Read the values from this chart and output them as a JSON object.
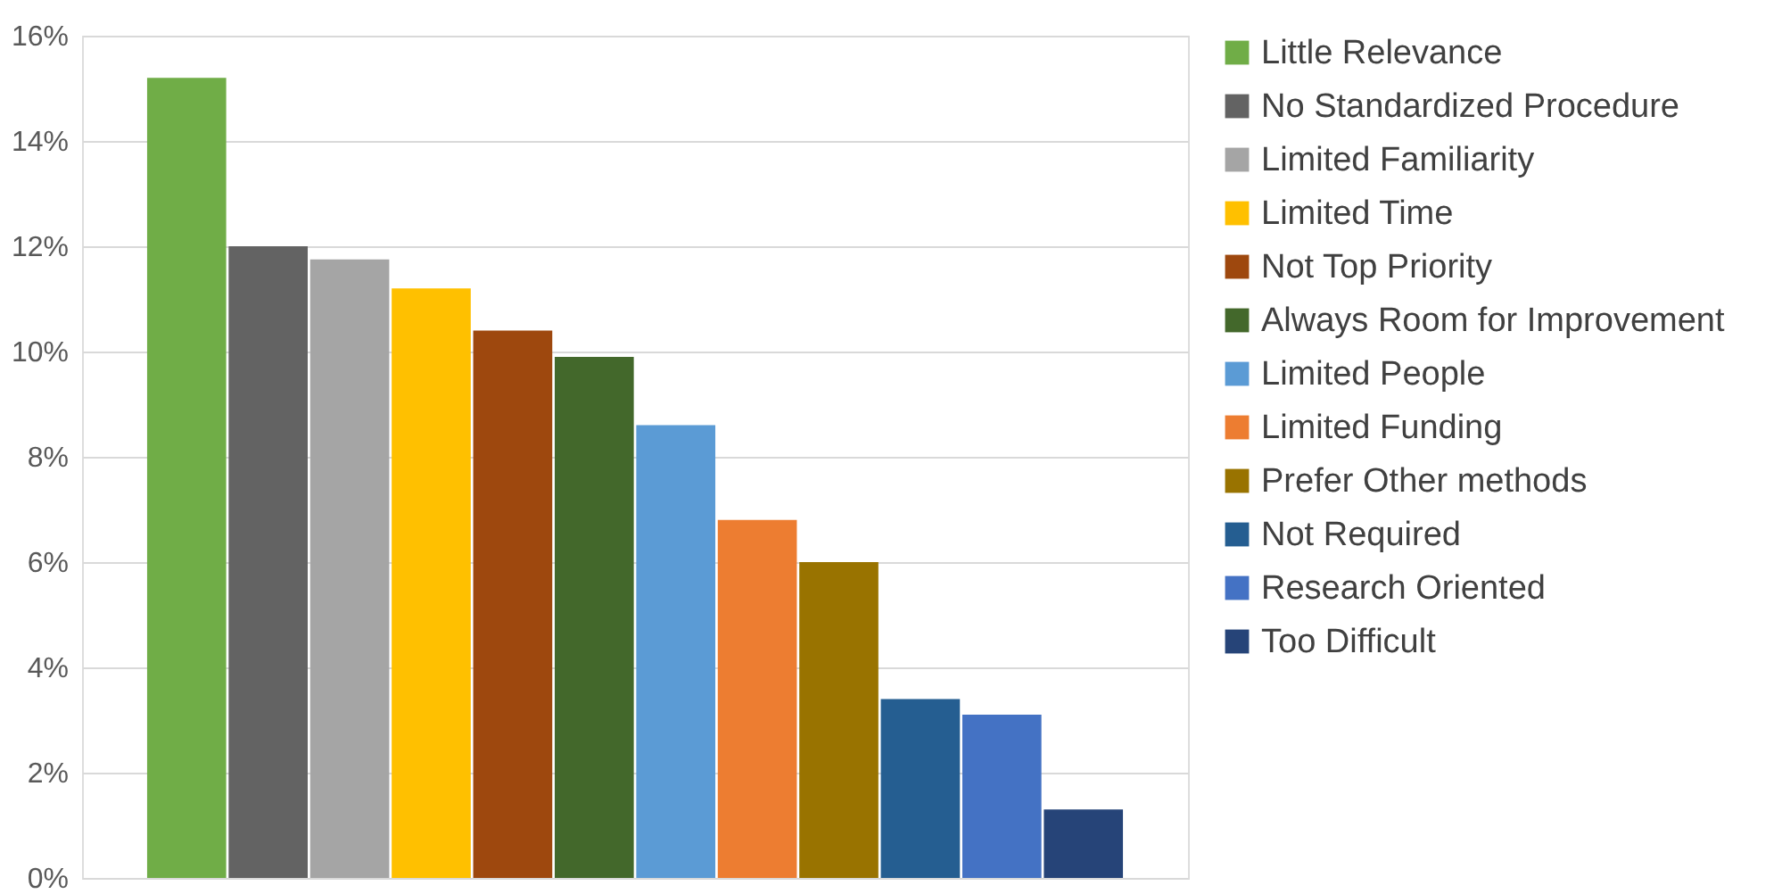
{
  "chart_data": {
    "type": "bar",
    "categories": [
      null
    ],
    "series": [
      {
        "name": "Little Relevance",
        "color": "#70ad47",
        "values": [
          15.2
        ]
      },
      {
        "name": "No Standardized Procedure",
        "color": "#636363",
        "values": [
          12.0
        ]
      },
      {
        "name": "Limited Familiarity",
        "color": "#a5a5a5",
        "values": [
          11.75
        ]
      },
      {
        "name": "Limited Time",
        "color": "#ffc000",
        "values": [
          11.2
        ]
      },
      {
        "name": "Not Top Priority",
        "color": "#9e480e",
        "values": [
          10.4
        ]
      },
      {
        "name": "Always Room for Improvement",
        "color": "#43682b",
        "values": [
          9.9
        ]
      },
      {
        "name": "Limited People",
        "color": "#5b9bd5",
        "values": [
          8.6
        ]
      },
      {
        "name": "Limited Funding",
        "color": "#ed7d31",
        "values": [
          6.8
        ]
      },
      {
        "name": "Prefer Other methods",
        "color": "#997300",
        "values": [
          6.0
        ]
      },
      {
        "name": "Not Required",
        "color": "#255e91",
        "values": [
          3.4
        ]
      },
      {
        "name": "Research Oriented",
        "color": "#4472c4",
        "values": [
          3.1
        ]
      },
      {
        "name": "Too Difficult",
        "color": "#264478",
        "values": [
          1.3
        ]
      }
    ],
    "ylim": [
      0,
      16
    ],
    "yticks": [
      {
        "value": 0,
        "label": "0%"
      },
      {
        "value": 2,
        "label": "2%"
      },
      {
        "value": 4,
        "label": "4%"
      },
      {
        "value": 6,
        "label": "6%"
      },
      {
        "value": 8,
        "label": "8%"
      },
      {
        "value": 10,
        "label": "10%"
      },
      {
        "value": 12,
        "label": "12%"
      },
      {
        "value": 14,
        "label": "14%"
      },
      {
        "value": 16,
        "label": "16%"
      }
    ],
    "grid": "y",
    "legend": "right"
  }
}
